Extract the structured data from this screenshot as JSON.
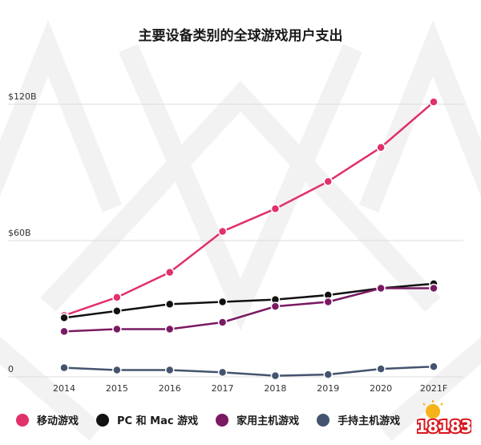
{
  "colors": {
    "mobile": "#e0316b",
    "pc": "#111111",
    "console": "#7a1a63",
    "handheld": "#44546e"
  },
  "chart_data": {
    "type": "line",
    "title": "主要设备类别的全球游戏用户支出",
    "xlabel": "",
    "ylabel": "",
    "categories": [
      "2014",
      "2015",
      "2016",
      "2017",
      "2018",
      "2019",
      "2020",
      "2021F"
    ],
    "y_ticks": [
      "$120B",
      "$60B",
      "0"
    ],
    "y_tick_values": [
      120,
      60,
      0
    ],
    "ylim": [
      0,
      120
    ],
    "grid": true,
    "legend_position": "bottom",
    "series": [
      {
        "name": "移动游戏",
        "color_key": "mobile",
        "values": [
          27,
          35,
          46,
          64,
          74,
          86,
          101,
          121
        ]
      },
      {
        "name": "PC 和 Mac 游戏",
        "color_key": "pc",
        "values": [
          26,
          29,
          32,
          33,
          34,
          36,
          39,
          41
        ]
      },
      {
        "name": "家用主机游戏",
        "color_key": "console",
        "values": [
          20,
          21,
          21,
          24,
          31,
          33,
          39,
          39
        ]
      },
      {
        "name": "手持主机游戏",
        "color_key": "handheld",
        "values": [
          4,
          3,
          3,
          2,
          0.5,
          1,
          3.5,
          4.5
        ]
      }
    ]
  },
  "watermark": {
    "text": "18183"
  }
}
